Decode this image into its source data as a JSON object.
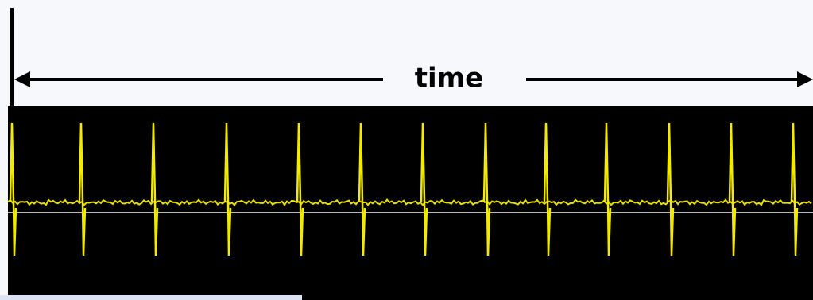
{
  "label": "time"
}
